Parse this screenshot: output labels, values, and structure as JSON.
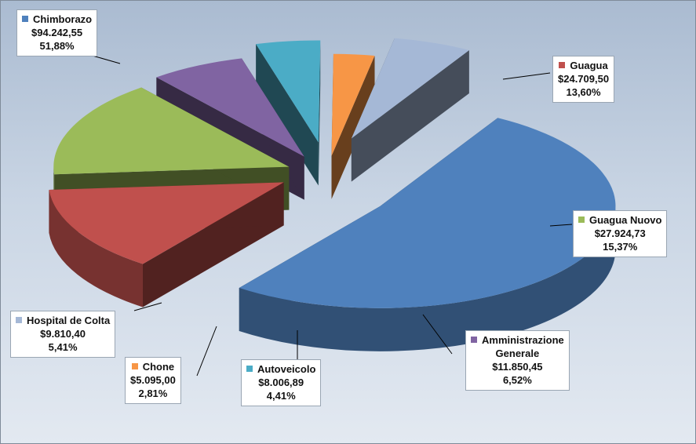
{
  "chart_data": {
    "type": "pie",
    "title": "",
    "slices": [
      {
        "name": "Chimborazo",
        "value": "$94.242,55",
        "percent": "51,88%",
        "color": "#4f81bd"
      },
      {
        "name": "Guagua",
        "value": "$24.709,50",
        "percent": "13,60%",
        "color": "#c0504d"
      },
      {
        "name": "Guagua Nuovo",
        "value": "$27.924,73",
        "percent": "15,37%",
        "color": "#9bbb59"
      },
      {
        "name": "Amministrazione Generale",
        "name_lines": [
          "Amministrazione",
          "Generale"
        ],
        "value": "$11.850,45",
        "percent": "6,52%",
        "color": "#8064a2"
      },
      {
        "name": "Autoveicolo",
        "value": "$8.006,89",
        "percent": "4,41%",
        "color": "#4bacc6"
      },
      {
        "name": "Chone",
        "value": "$5.095,00",
        "percent": "2,81%",
        "color": "#f79646"
      },
      {
        "name": "Hospital de Colta",
        "value": "$9.810,40",
        "percent": "5,41%",
        "color": "#a5b8d6"
      }
    ],
    "values_numeric": [
      94242.55,
      24709.5,
      27924.73,
      11850.45,
      8006.89,
      5095.0,
      9810.4
    ],
    "exploded": true,
    "three_d": true,
    "legend": "none",
    "data_labels": "outside-with-leader-lines"
  }
}
